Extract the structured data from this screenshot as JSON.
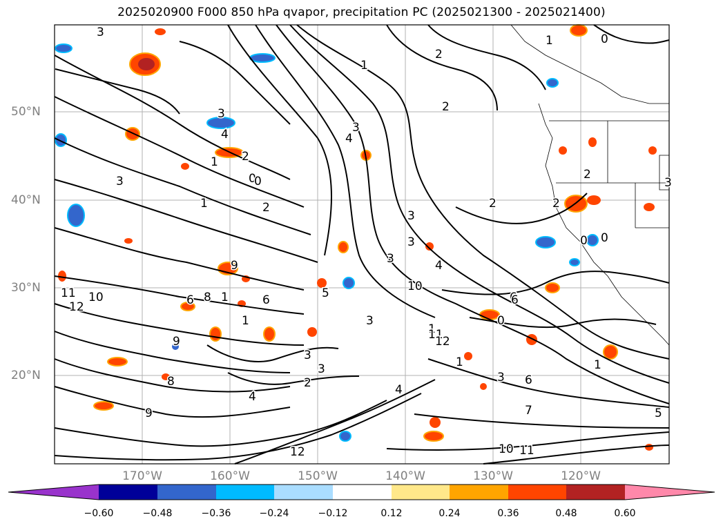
{
  "title": "2025020900 F000 850 hPa qvapor, precipitation PC (2025021300 - 2025021400)",
  "lat_labels": [
    "50°N",
    "40°N",
    "30°N",
    "20°N"
  ],
  "lon_labels": [
    "170°W",
    "160°W",
    "150°W",
    "140°W",
    "130°W",
    "120°W"
  ],
  "colorbar": {
    "colors": [
      "#9933cc",
      "#000099",
      "#3366cc",
      "#00bbff",
      "#aaddff",
      "#ffffff",
      "#ffe88a",
      "#ffa500",
      "#ff4500",
      "#b22222",
      "#ff88aa"
    ],
    "tick_labels": [
      "−0.60",
      "−0.48",
      "−0.36",
      "−0.24",
      "−0.12",
      "0.12",
      "0.24",
      "0.36",
      "0.48",
      "0.60"
    ]
  },
  "contour_labels": [
    "3",
    "1",
    "0",
    "1",
    "2",
    "3",
    "4",
    "2",
    "1",
    "0",
    "3",
    "2",
    "4",
    "3",
    "6",
    "2",
    "0",
    "1",
    "2",
    "3",
    "9",
    "8",
    "10",
    "11",
    "12",
    "6",
    "5",
    "3",
    "1",
    "0",
    "2",
    "4",
    "6",
    "8",
    "9",
    "10",
    "11",
    "12",
    "1",
    "0",
    "3",
    "3",
    "4",
    "1",
    "2",
    "3",
    "6",
    "4",
    "1",
    "3",
    "3",
    "12",
    "11",
    "10",
    "9",
    "7",
    "6",
    "5",
    "0",
    "2",
    "3",
    "1"
  ]
}
